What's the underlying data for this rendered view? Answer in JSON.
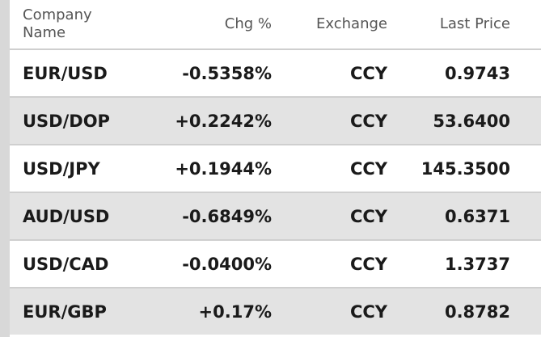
{
  "table": {
    "columns": [
      "Company Name",
      "Chg %",
      "Exchange",
      "Last Price"
    ],
    "rows": [
      [
        "EUR/USD",
        "-0.5358%",
        "CCY",
        "0.9743"
      ],
      [
        "USD/DOP",
        "+0.2242%",
        "CCY",
        "53.6400"
      ],
      [
        "USD/JPY",
        "+0.1944%",
        "CCY",
        "145.3500"
      ],
      [
        "AUD/USD",
        "-0.6849%",
        "CCY",
        "0.6371"
      ],
      [
        "USD/CAD",
        "-0.0400%",
        "CCY",
        "1.3737"
      ],
      [
        "EUR/GBP",
        "+0.17%",
        "CCY",
        "0.8782"
      ]
    ]
  }
}
